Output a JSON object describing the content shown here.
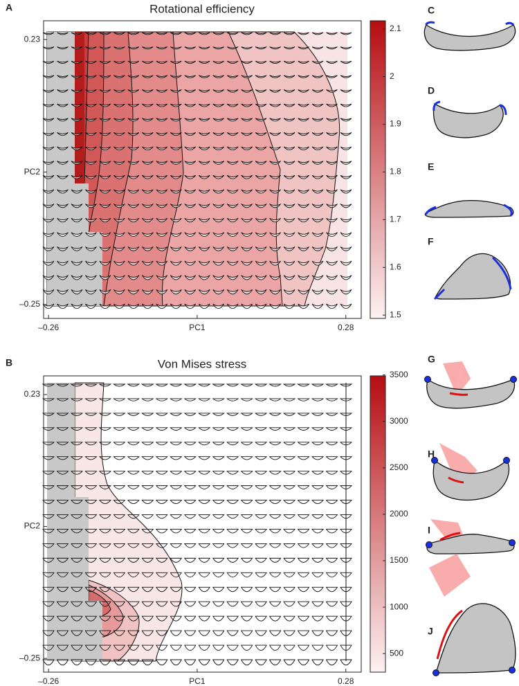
{
  "chart_data": [
    {
      "type": "contour",
      "panel": "A",
      "title": "Rotational efficiency",
      "xlabel": "PC1",
      "ylabel": "PC2",
      "xlim": [
        -0.269,
        0.308
      ],
      "xticks": [
        {
          "value": -0.26,
          "label": "–0.26"
        },
        0.28
      ],
      "ylim": [
        -0.275,
        0.264
      ],
      "yticks": [
        0.23,
        {
          "value": -0.25,
          "label": "–0.25"
        }
      ],
      "colorbar": {
        "lim": [
          1.493,
          2.117
        ],
        "ticks": [
          1.5,
          1.6,
          1.7,
          1.8,
          1.9,
          2,
          2.1
        ],
        "colors": [
          "#fdf2f2",
          "#b50d12"
        ]
      }
    },
    {
      "type": "contour",
      "panel": "B",
      "title": "Von Mises stress",
      "xlabel": "PC1",
      "ylabel": "PC2",
      "xlim": [
        -0.269,
        0.308
      ],
      "xticks": [
        {
          "value": -0.26,
          "label": "–0.26"
        },
        0.28
      ],
      "ylim": [
        -0.275,
        0.264
      ],
      "yticks": [
        0.23,
        {
          "value": -0.25,
          "label": "–0.25"
        }
      ],
      "colorbar": {
        "lim": [
          300,
          3490
        ],
        "ticks": [
          500,
          1000,
          1500,
          2000,
          2500,
          3000,
          3500
        ],
        "colors": [
          "#fdf2f2",
          "#b50d12"
        ]
      }
    }
  ],
  "shape_panels": [
    "C",
    "D",
    "E",
    "F",
    "G",
    "H",
    "I",
    "J"
  ]
}
